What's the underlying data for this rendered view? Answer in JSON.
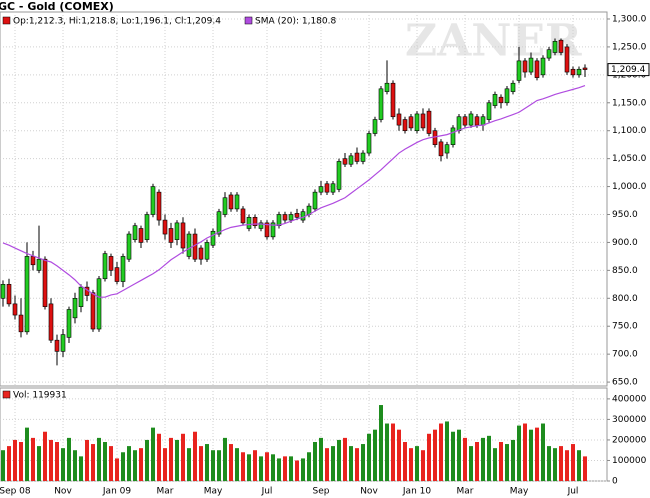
{
  "chart_data": {
    "type": "candlestick",
    "title": "GC - Gold (COMEX)",
    "watermark": "ZANER",
    "legend": "Op:1,212.3, Hi:1,218.8, Lo:1,196.1, Cl:1,209.4",
    "up_color": "#22cc22",
    "down_color": "#dd1111",
    "open": [
      800,
      825,
      790,
      770,
      740,
      875,
      850,
      870,
      790,
      725,
      705,
      730,
      765,
      785,
      820,
      810,
      745,
      835,
      875,
      855,
      830,
      870,
      905,
      925,
      905,
      950,
      990,
      940,
      925,
      905,
      935,
      875,
      915,
      890,
      870,
      895,
      915,
      950,
      985,
      960,
      960,
      925,
      945,
      925,
      935,
      910,
      930,
      950,
      940,
      952,
      940,
      950,
      960,
      990,
      1005,
      990,
      995,
      1050,
      1040,
      1060,
      1045,
      1060,
      1095,
      1120,
      1170,
      1185,
      1130,
      1120,
      1125,
      1100,
      1130,
      1135,
      1100,
      1080,
      1060,
      1075,
      1100,
      1125,
      1110,
      1125,
      1110,
      1120,
      1145,
      1160,
      1150,
      1170,
      1190,
      1225,
      1205,
      1225,
      1200,
      1230,
      1240,
      1262,
      1250,
      1210,
      1200,
      1212.3
    ],
    "high": [
      832,
      835,
      805,
      800,
      900,
      885,
      930,
      875,
      800,
      735,
      745,
      785,
      810,
      825,
      830,
      815,
      840,
      885,
      880,
      865,
      880,
      920,
      935,
      930,
      955,
      1005,
      995,
      950,
      935,
      940,
      945,
      920,
      925,
      895,
      905,
      925,
      960,
      990,
      990,
      990,
      965,
      950,
      950,
      940,
      940,
      940,
      955,
      955,
      955,
      960,
      960,
      970,
      995,
      1010,
      1010,
      1010,
      1050,
      1060,
      1060,
      1070,
      1065,
      1100,
      1125,
      1180,
      1226,
      1190,
      1140,
      1125,
      1130,
      1135,
      1140,
      1140,
      1105,
      1085,
      1080,
      1110,
      1130,
      1130,
      1135,
      1130,
      1130,
      1155,
      1170,
      1165,
      1180,
      1190,
      1250,
      1230,
      1240,
      1230,
      1235,
      1250,
      1265,
      1265,
      1255,
      1215,
      1215,
      1218.8
    ],
    "low": [
      785,
      785,
      762,
      730,
      735,
      850,
      845,
      780,
      720,
      680,
      695,
      720,
      755,
      775,
      795,
      740,
      740,
      830,
      840,
      825,
      820,
      865,
      900,
      890,
      900,
      945,
      930,
      905,
      890,
      895,
      880,
      870,
      865,
      860,
      865,
      890,
      910,
      945,
      955,
      955,
      930,
      920,
      925,
      920,
      905,
      905,
      925,
      935,
      935,
      940,
      935,
      945,
      955,
      985,
      985,
      985,
      990,
      1035,
      1035,
      1040,
      1040,
      1055,
      1090,
      1115,
      1165,
      1120,
      1100,
      1095,
      1100,
      1095,
      1100,
      1090,
      1070,
      1045,
      1050,
      1070,
      1095,
      1105,
      1105,
      1105,
      1100,
      1115,
      1140,
      1140,
      1145,
      1165,
      1185,
      1195,
      1200,
      1190,
      1195,
      1225,
      1235,
      1235,
      1200,
      1195,
      1195,
      1196.1
    ],
    "close": [
      825,
      790,
      770,
      740,
      875,
      860,
      870,
      785,
      725,
      705,
      735,
      780,
      800,
      820,
      805,
      745,
      835,
      880,
      850,
      830,
      875,
      915,
      930,
      900,
      950,
      1000,
      940,
      915,
      900,
      935,
      890,
      915,
      870,
      870,
      900,
      920,
      955,
      980,
      960,
      985,
      935,
      945,
      930,
      935,
      910,
      935,
      950,
      940,
      950,
      945,
      955,
      965,
      990,
      1000,
      990,
      1005,
      1045,
      1040,
      1055,
      1045,
      1060,
      1095,
      1120,
      1175,
      1185,
      1125,
      1110,
      1100,
      1105,
      1130,
      1105,
      1095,
      1075,
      1055,
      1075,
      1105,
      1125,
      1110,
      1130,
      1110,
      1125,
      1150,
      1165,
      1150,
      1175,
      1185,
      1225,
      1205,
      1230,
      1195,
      1230,
      1245,
      1260,
      1240,
      1205,
      1200,
      1210,
      1209.4
    ],
    "sma": {
      "name": "SMA (20): 1,180.8",
      "color": "#b04ce0",
      "values": [
        899,
        895,
        890,
        885,
        880,
        876,
        872,
        868,
        865,
        858,
        850,
        842,
        833,
        822,
        815,
        808,
        802,
        802,
        806,
        808,
        814,
        820,
        826,
        832,
        838,
        844,
        851,
        860,
        869,
        876,
        883,
        889,
        895,
        901,
        908,
        913,
        918,
        923,
        927,
        929,
        931,
        932,
        933,
        933,
        932,
        931,
        931,
        934,
        938,
        942,
        945,
        950,
        956,
        962,
        966,
        970,
        975,
        980,
        988,
        996,
        1004,
        1012,
        1021,
        1030,
        1040,
        1050,
        1060,
        1067,
        1073,
        1079,
        1084,
        1087,
        1089,
        1091,
        1093,
        1097,
        1101,
        1105,
        1107,
        1109,
        1110,
        1114,
        1118,
        1121,
        1125,
        1129,
        1133,
        1140,
        1147,
        1154,
        1157,
        1161,
        1165,
        1168,
        1171,
        1174,
        1177,
        1180.8
      ]
    },
    "last_label": "1,209.4",
    "ylim": [
      643,
      1312.5
    ],
    "yticks": [
      {
        "value": 650,
        "label": "650.0"
      },
      {
        "value": 700,
        "label": "700.0"
      },
      {
        "value": 750,
        "label": "750.0"
      },
      {
        "value": 800,
        "label": "800.0"
      },
      {
        "value": 850,
        "label": "850.0"
      },
      {
        "value": 900,
        "label": "900.0"
      },
      {
        "value": 950,
        "label": "950.0"
      },
      {
        "value": 1000,
        "label": "1,000.0"
      },
      {
        "value": 1050,
        "label": "1,050.0"
      },
      {
        "value": 1100,
        "label": "1,100.0"
      },
      {
        "value": 1150,
        "label": "1,150.0"
      },
      {
        "value": 1200,
        "label": "1,200.0"
      },
      {
        "value": 1250,
        "label": "1,250.0"
      },
      {
        "value": 1300,
        "label": "1,300.0"
      }
    ],
    "xticks": [
      {
        "value": 2,
        "label": "Sep 08"
      },
      {
        "value": 10,
        "label": "Nov"
      },
      {
        "value": 19,
        "label": "Jan 09"
      },
      {
        "value": 27,
        "label": "Mar"
      },
      {
        "value": 35,
        "label": "May"
      },
      {
        "value": 44,
        "label": "Jul"
      },
      {
        "value": 53,
        "label": "Sep"
      },
      {
        "value": 61,
        "label": "Nov"
      },
      {
        "value": 69,
        "label": "Jan 10"
      },
      {
        "value": 77,
        "label": "Mar"
      },
      {
        "value": 86,
        "label": "May"
      },
      {
        "value": 95,
        "label": "Jul"
      }
    ],
    "grid": true,
    "volume": {
      "label": "Vol: 119931",
      "up_color": "#1e8c1e",
      "down_color": "#e8231e",
      "values": [
        150000,
        170000,
        200000,
        190000,
        260000,
        210000,
        170000,
        240000,
        200000,
        190000,
        160000,
        210000,
        150000,
        120000,
        200000,
        180000,
        210000,
        190000,
        170000,
        110000,
        140000,
        170000,
        150000,
        160000,
        200000,
        260000,
        230000,
        160000,
        210000,
        200000,
        230000,
        160000,
        240000,
        170000,
        180000,
        150000,
        150000,
        210000,
        180000,
        160000,
        140000,
        130000,
        150000,
        120000,
        140000,
        130000,
        110000,
        120000,
        120000,
        100000,
        110000,
        140000,
        190000,
        210000,
        160000,
        170000,
        200000,
        210000,
        170000,
        160000,
        180000,
        230000,
        250000,
        370000,
        280000,
        280000,
        250000,
        190000,
        160000,
        170000,
        150000,
        230000,
        250000,
        280000,
        290000,
        240000,
        250000,
        210000,
        170000,
        190000,
        210000,
        220000,
        160000,
        190000,
        180000,
        200000,
        270000,
        280000,
        250000,
        260000,
        280000,
        170000,
        160000,
        170000,
        150000,
        180000,
        150000,
        119931
      ],
      "ylim": [
        0,
        453000
      ],
      "yticks": [
        0,
        100000,
        200000,
        300000,
        400000
      ]
    }
  }
}
